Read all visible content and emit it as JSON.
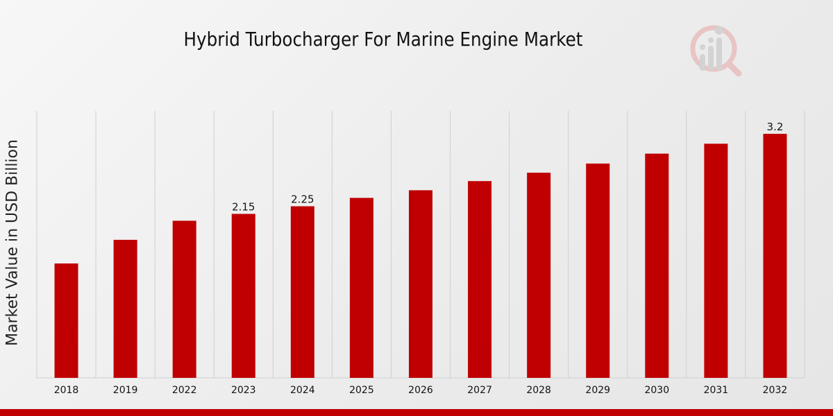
{
  "chart_data": {
    "type": "bar",
    "title": "Hybrid Turbocharger For Marine Engine Market",
    "ylabel": "Market Value in USD Billion",
    "xlabel": "",
    "categories": [
      "2018",
      "2019",
      "2022",
      "2023",
      "2024",
      "2025",
      "2026",
      "2027",
      "2028",
      "2029",
      "2030",
      "2031",
      "2032"
    ],
    "values": [
      1.5,
      1.81,
      2.06,
      2.15,
      2.25,
      2.36,
      2.46,
      2.58,
      2.69,
      2.81,
      2.94,
      3.07,
      3.2
    ],
    "data_labels": {
      "3": "2.15",
      "4": "2.25",
      "12": "3.2"
    },
    "ylim": [
      0,
      3.5
    ],
    "grid": "vertical",
    "bar_color": "#c00000"
  },
  "logo_icon": "magnifier-chart-icon"
}
